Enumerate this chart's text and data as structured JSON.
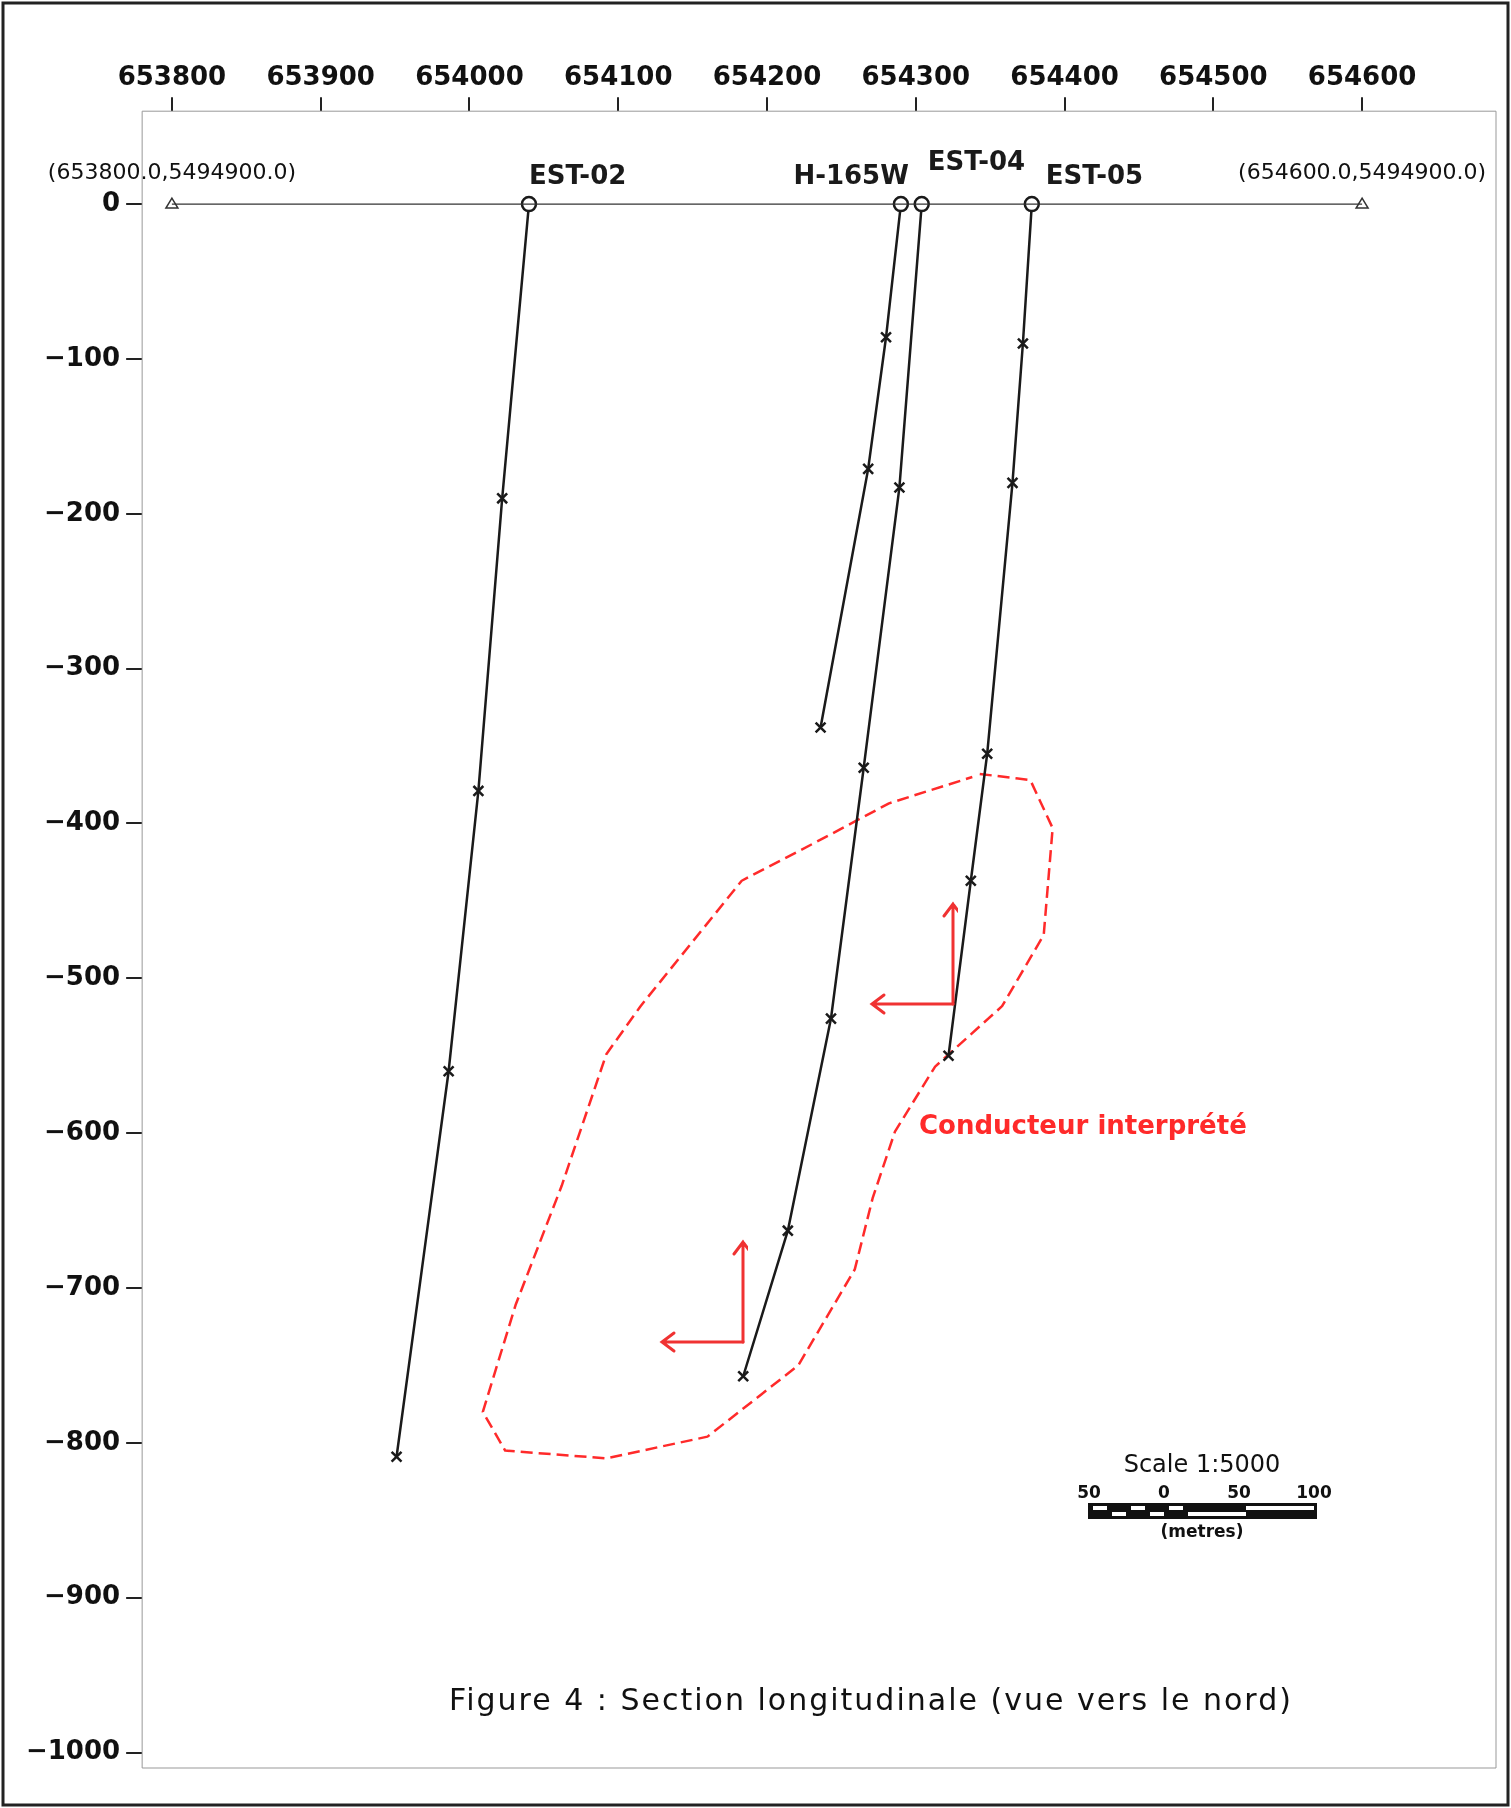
{
  "chart_data": {
    "type": "line",
    "title": "Figure 4 : Section longitudinale (vue vers le nord)",
    "xlim": [
      653780,
      654690
    ],
    "xticks": [
      653800,
      653900,
      654000,
      654100,
      654200,
      654300,
      654400,
      654500,
      654600
    ],
    "ylim": [
      -1010,
      60
    ],
    "yticks": [
      -1000,
      -900,
      -800,
      -700,
      -600,
      -500,
      -400,
      -300,
      -200,
      -100,
      0
    ],
    "grid": false,
    "legend": false,
    "marker": "cross",
    "line_style": "solid",
    "ref_lines": [
      {
        "axis": "y",
        "value": 0,
        "color": "#333333"
      }
    ],
    "annotations": [
      {
        "text": "(653800.0,5494900.0)",
        "x": 653800,
        "y": 0
      },
      {
        "text": "(654600.0,5494900.0)",
        "x": 654600,
        "y": 0
      },
      "Scale 1:5000",
      "50",
      "0",
      "50",
      "100",
      "(metres)"
    ],
    "series": [
      {
        "name": "EST-02",
        "color": "#1a1a1a",
        "x": [
          654040,
          654022,
          654006,
          653986,
          653951
        ],
        "values": [
          0,
          -190,
          -379,
          -560,
          -809
        ]
      },
      {
        "name": "H-165W",
        "color": "#1a1a1a",
        "x": [
          654290,
          654280,
          654268,
          654236
        ],
        "values": [
          0,
          -86,
          -171,
          -338
        ]
      },
      {
        "name": "EST-04",
        "color": "#1a1a1a",
        "x": [
          654304,
          654289,
          654265,
          654243,
          654214,
          654184
        ],
        "values": [
          0,
          -183,
          -364,
          -526,
          -663,
          -757
        ]
      },
      {
        "name": "EST-05",
        "color": "#1a1a1a",
        "x": [
          654378,
          654372,
          654365,
          654348,
          654337,
          654322
        ],
        "values": [
          0,
          -90,
          -180,
          -355,
          -437,
          -550
        ]
      },
      {
        "type": "scatter",
        "marker": "circle",
        "color": "#1a1a1a",
        "x": [
          654040,
          654290,
          654304,
          654378
        ],
        "values": [
          0,
          0,
          0,
          0
        ]
      },
      {
        "name": "Conducteur interprété",
        "color": "#ff2a2a",
        "line_style": "dashed",
        "marker": "none",
        "x": [
          654343,
          654377,
          654392,
          654386,
          654358,
          654313,
          654286,
          654271,
          654259,
          654221,
          654160,
          654092,
          654024,
          654009,
          654031,
          654062,
          654092,
          654115,
          654183,
          654237,
          654282,
          654338
        ],
        "values": [
          -368,
          -372,
          -403,
          -472,
          -518,
          -557,
          -599,
          -642,
          -688,
          -750,
          -796,
          -810,
          -805,
          -780,
          -711,
          -634,
          -549,
          -518,
          -437,
          -410,
          -387,
          -370
        ]
      }
    ]
  }
}
